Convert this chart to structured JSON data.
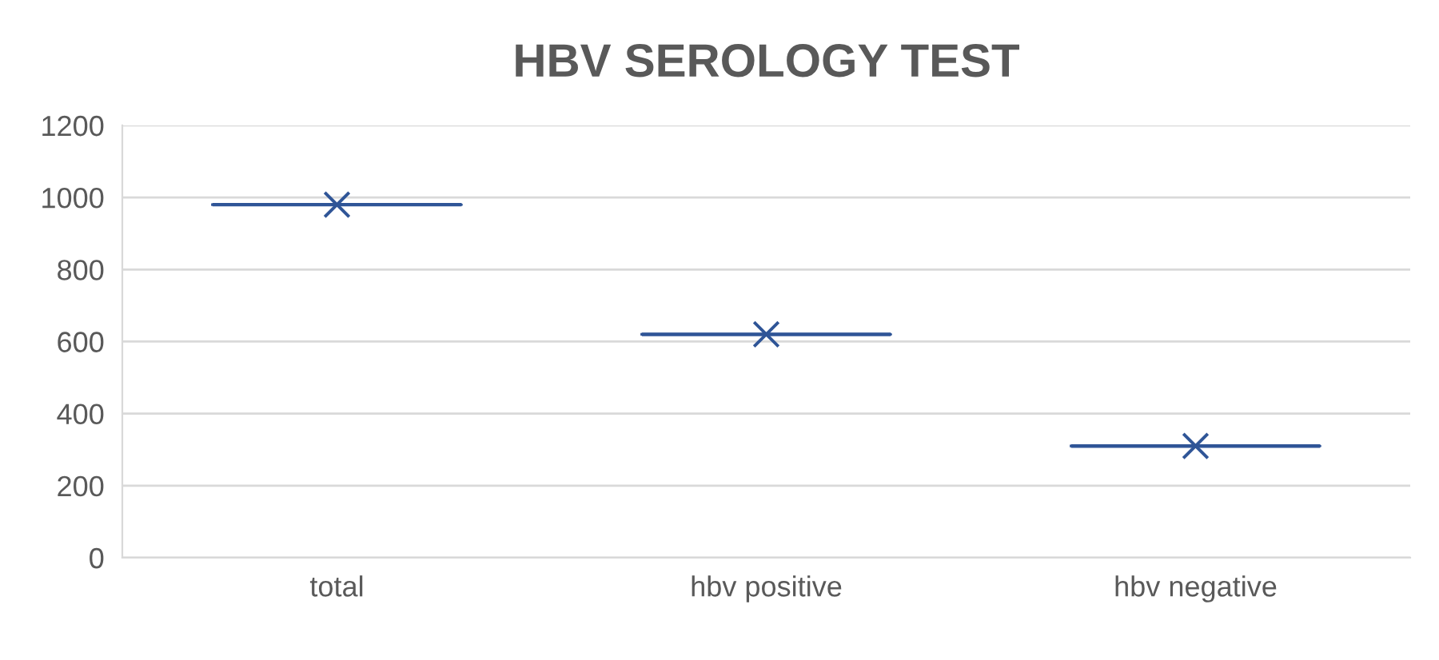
{
  "chart_data": {
    "type": "box",
    "title": "HBV SEROLOGY TEST",
    "categories": [
      "total",
      "hbv positive",
      "hbv negative"
    ],
    "color": "#2f5597",
    "boxes": [
      {
        "low": 980,
        "q1": 980,
        "median": 980,
        "q3": 980,
        "high": 980,
        "mean": 980
      },
      {
        "low": 620,
        "q1": 620,
        "median": 620,
        "q3": 620,
        "high": 620,
        "mean": 620
      },
      {
        "low": 310,
        "q1": 310,
        "median": 310,
        "q3": 310,
        "high": 310,
        "mean": 310
      }
    ],
    "ylim": [
      0,
      1200
    ],
    "yticks": [
      0,
      200,
      400,
      600,
      800,
      1000,
      1200
    ],
    "grid": "y",
    "marker": "cross"
  }
}
